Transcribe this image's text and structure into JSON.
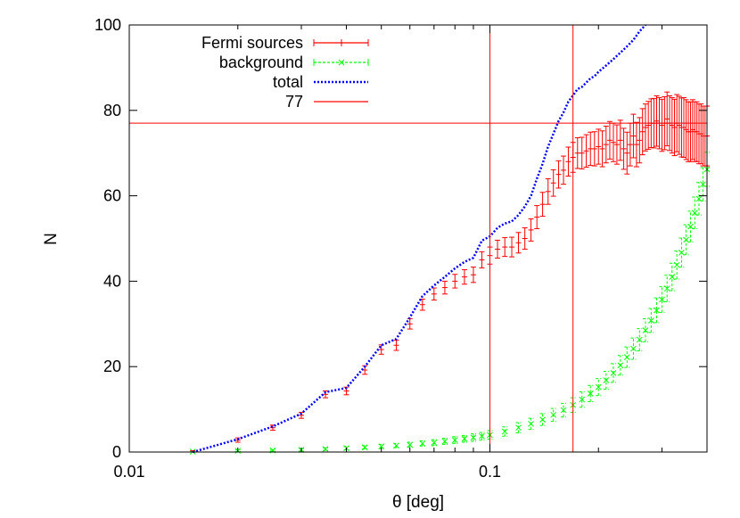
{
  "chart_data": {
    "type": "line",
    "xlabel": "θ [deg]",
    "ylabel": "N",
    "xscale": "log",
    "xlim": [
      0.01,
      0.4
    ],
    "ylim": [
      0,
      100
    ],
    "xticks": [
      {
        "value": 0.01,
        "label": "0.01"
      },
      {
        "value": 0.1,
        "label": "0.1"
      }
    ],
    "yticks": [
      {
        "value": 0,
        "label": "0"
      },
      {
        "value": 20,
        "label": "20"
      },
      {
        "value": 40,
        "label": "40"
      },
      {
        "value": 60,
        "label": "60"
      },
      {
        "value": 80,
        "label": "80"
      },
      {
        "value": 100,
        "label": "100"
      }
    ],
    "legend_position": "top-left",
    "grid": false,
    "series": [
      {
        "name": "Fermi sources",
        "style": "errorbars",
        "color": "#ff0000",
        "x": [
          0.015,
          0.02,
          0.025,
          0.03,
          0.035,
          0.04,
          0.045,
          0.05,
          0.055,
          0.06,
          0.065,
          0.07,
          0.075,
          0.08,
          0.085,
          0.09,
          0.095,
          0.1,
          0.105,
          0.11,
          0.115,
          0.12,
          0.125,
          0.13,
          0.135,
          0.14,
          0.145,
          0.15,
          0.155,
          0.16,
          0.165,
          0.17,
          0.175,
          0.18,
          0.185,
          0.19,
          0.195,
          0.2,
          0.205,
          0.21,
          0.215,
          0.22,
          0.225,
          0.23,
          0.235,
          0.24,
          0.245,
          0.25,
          0.255,
          0.26,
          0.265,
          0.27,
          0.275,
          0.28,
          0.285,
          0.29,
          0.295,
          0.3,
          0.305,
          0.31,
          0.315,
          0.32,
          0.325,
          0.33,
          0.335,
          0.34,
          0.345,
          0.35,
          0.355,
          0.36,
          0.365,
          0.37,
          0.375,
          0.38,
          0.385,
          0.39,
          0.395,
          0.4
        ],
        "y": [
          0,
          2.8,
          5.7,
          8.6,
          13.5,
          14.3,
          19.2,
          24,
          25,
          30,
          34.5,
          37,
          38.5,
          40,
          41,
          41.5,
          45,
          46,
          47.5,
          48,
          48,
          49,
          50,
          52,
          55,
          58,
          61,
          63,
          65,
          66,
          68,
          69,
          70,
          70,
          70.5,
          71,
          71,
          71.5,
          71,
          72,
          73,
          72.5,
          72,
          73,
          71,
          70,
          72,
          74,
          72,
          73,
          75,
          76,
          76.5,
          77,
          77,
          77.5,
          77,
          76.5,
          77,
          78,
          77,
          76.5,
          76,
          77,
          76.5,
          76,
          76,
          75.5,
          75,
          75,
          75.5,
          75,
          75,
          74.5,
          74.5,
          74,
          74,
          74
        ],
        "err": [
          0.3,
          0.5,
          0.6,
          0.7,
          0.8,
          0.9,
          1.0,
          1.1,
          1.2,
          1.2,
          1.3,
          1.4,
          1.5,
          1.6,
          1.7,
          1.8,
          1.9,
          2.0,
          2.1,
          2.2,
          2.3,
          2.4,
          2.5,
          2.6,
          2.7,
          2.8,
          3.0,
          3.1,
          3.2,
          3.3,
          3.4,
          3.5,
          3.6,
          3.7,
          3.8,
          3.9,
          4.0,
          4.1,
          4.2,
          4.3,
          4.4,
          4.5,
          4.6,
          4.7,
          4.8,
          4.9,
          5.0,
          5.1,
          5.2,
          5.3,
          5.4,
          5.5,
          5.6,
          5.7,
          5.8,
          5.9,
          6.0,
          6.1,
          6.2,
          6.3,
          6.4,
          6.5,
          6.6,
          6.7,
          6.8,
          6.9,
          7.0,
          7.0,
          7.0,
          7.0,
          7.0,
          7.0,
          7.0,
          7.0,
          7.0,
          7.0,
          7.0,
          7.0
        ]
      },
      {
        "name": "background",
        "style": "errorbars-dashed",
        "color": "#00ff00",
        "x": [
          0.015,
          0.02,
          0.025,
          0.03,
          0.035,
          0.04,
          0.045,
          0.05,
          0.055,
          0.06,
          0.065,
          0.07,
          0.075,
          0.08,
          0.085,
          0.09,
          0.095,
          0.1,
          0.11,
          0.12,
          0.13,
          0.14,
          0.15,
          0.16,
          0.17,
          0.18,
          0.19,
          0.2,
          0.21,
          0.22,
          0.23,
          0.24,
          0.25,
          0.26,
          0.27,
          0.28,
          0.29,
          0.3,
          0.31,
          0.32,
          0.33,
          0.34,
          0.35,
          0.36,
          0.37,
          0.38,
          0.39,
          0.4
        ],
        "y": [
          0.1,
          0.3,
          0.4,
          0.5,
          0.7,
          0.9,
          1.1,
          1.3,
          1.5,
          1.7,
          2.0,
          2.2,
          2.5,
          2.8,
          3.1,
          3.4,
          3.7,
          4.0,
          4.8,
          5.7,
          6.6,
          7.6,
          8.7,
          9.8,
          11.0,
          12.3,
          13.7,
          15.2,
          16.8,
          18.5,
          20.3,
          22.2,
          24.2,
          26.3,
          28.5,
          30.8,
          33.2,
          35.7,
          38.3,
          41.0,
          43.8,
          46.7,
          49.7,
          52.8,
          56.0,
          59.3,
          62.7,
          66.2
        ],
        "err": [
          0.1,
          0.2,
          0.2,
          0.3,
          0.3,
          0.4,
          0.4,
          0.5,
          0.5,
          0.6,
          0.6,
          0.7,
          0.7,
          0.8,
          0.8,
          0.9,
          0.9,
          1.0,
          1.1,
          1.2,
          1.3,
          1.4,
          1.5,
          1.6,
          1.7,
          1.8,
          1.9,
          2.0,
          2.1,
          2.2,
          2.3,
          2.4,
          2.5,
          2.6,
          2.7,
          2.8,
          2.9,
          3.0,
          3.1,
          3.2,
          3.3,
          3.4,
          3.5,
          3.6,
          3.7,
          3.8,
          3.9,
          4.0
        ]
      },
      {
        "name": "total",
        "style": "dotted-line",
        "color": "#0000ff",
        "x": [
          0.015,
          0.02,
          0.025,
          0.03,
          0.035,
          0.04,
          0.045,
          0.05,
          0.055,
          0.06,
          0.065,
          0.07,
          0.075,
          0.08,
          0.085,
          0.09,
          0.095,
          0.1,
          0.105,
          0.11,
          0.115,
          0.12,
          0.125,
          0.13,
          0.135,
          0.14,
          0.145,
          0.15,
          0.155,
          0.16,
          0.165,
          0.17,
          0.175,
          0.18,
          0.185,
          0.19,
          0.195,
          0.2,
          0.21,
          0.22,
          0.23,
          0.24,
          0.25,
          0.26,
          0.27
        ],
        "y": [
          0,
          3,
          6,
          9,
          14,
          15,
          20,
          25,
          26.5,
          31.5,
          36.5,
          39,
          41,
          43,
          44.5,
          45.5,
          49.5,
          50.5,
          52.5,
          53.5,
          54,
          55.5,
          57.5,
          60,
          64,
          67.5,
          71.5,
          74.5,
          77.5,
          79.5,
          82,
          83.5,
          85,
          85.5,
          86.5,
          87.5,
          88,
          89,
          90.5,
          92,
          93.5,
          95,
          96.5,
          98.5,
          100
        ]
      },
      {
        "name": "77",
        "style": "hline",
        "color": "#ff0000",
        "value": 77
      }
    ],
    "vlines": [
      {
        "x": 0.1,
        "color": "#ff0000"
      },
      {
        "x": 0.17,
        "color": "#ff0000"
      }
    ]
  }
}
